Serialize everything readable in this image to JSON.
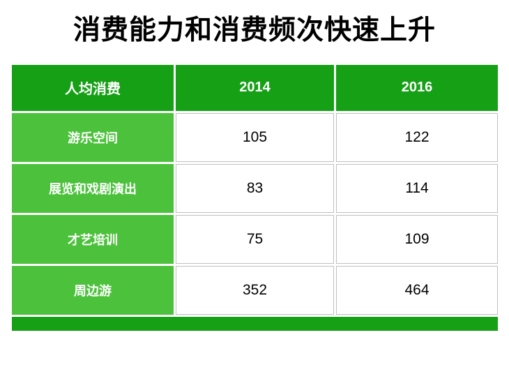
{
  "title": "消费能力和消费频次快速上升",
  "chart_data": {
    "type": "table",
    "title": "消费能力和消费频次快速上升",
    "columns": [
      "人均消费",
      "2014",
      "2016"
    ],
    "rows": [
      [
        "游乐空间",
        "105",
        "122"
      ],
      [
        "展览和戏剧演出",
        "83",
        "114"
      ],
      [
        "才艺培训",
        "75",
        "109"
      ],
      [
        "周边游",
        "352",
        "464"
      ]
    ]
  },
  "colors": {
    "header_green": "#16A016",
    "row_green": "#4CC13C",
    "border_gray": "#BFBFBF",
    "text_dark": "#000000"
  }
}
